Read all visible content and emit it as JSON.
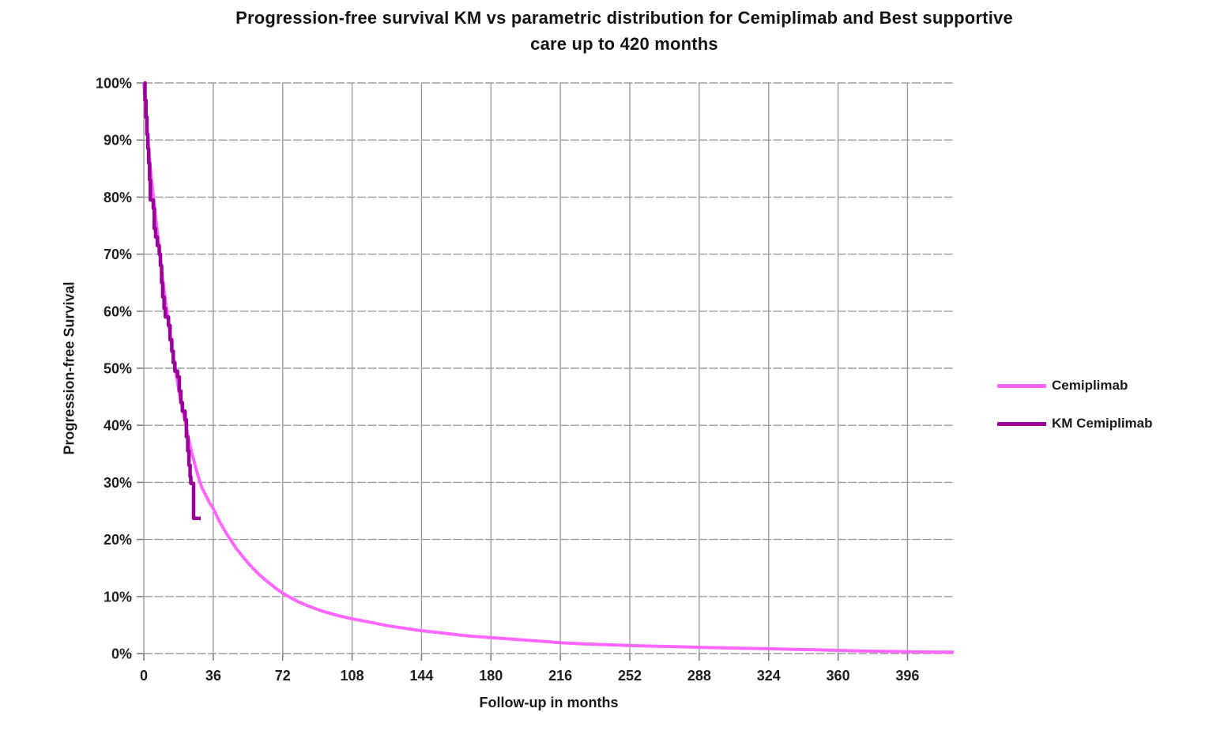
{
  "chart_data": {
    "type": "line",
    "title": "Progression-free survival KM vs parametric distribution for Cemiplimab and Best supportive care up to 420 months",
    "title_lines": [
      "Progression-free survival KM vs parametric distribution for Cemiplimab and Best supportive",
      "care up to 420 months"
    ],
    "xlabel": "Follow-up in months",
    "ylabel": "Progression-free Survival",
    "x_ticks": [
      0,
      36,
      72,
      108,
      144,
      180,
      216,
      252,
      288,
      324,
      360,
      396
    ],
    "x_max": 420,
    "y_ticks": [
      0,
      10,
      20,
      30,
      40,
      50,
      60,
      70,
      80,
      90,
      100
    ],
    "y_tick_suffix": "%",
    "ylim": [
      0,
      100
    ],
    "grid": true,
    "grid_color": "#9D9D9D",
    "tick_color": "#7F7F7F",
    "legend_position": "right",
    "series": [
      {
        "name": "Cemiplimab",
        "color": "#FF66FF",
        "style": "smooth",
        "width": 4,
        "points": [
          [
            0,
            100
          ],
          [
            1,
            95.5
          ],
          [
            2,
            91
          ],
          [
            3,
            86.5
          ],
          [
            4,
            83
          ],
          [
            5,
            80
          ],
          [
            6,
            77
          ],
          [
            7,
            74
          ],
          [
            8,
            71
          ],
          [
            9,
            68
          ],
          [
            10,
            65
          ],
          [
            11,
            62.5
          ],
          [
            12,
            60
          ],
          [
            13,
            57.5
          ],
          [
            14,
            55
          ],
          [
            15,
            52.5
          ],
          [
            16,
            50.5
          ],
          [
            17,
            48.5
          ],
          [
            18,
            46.5
          ],
          [
            19,
            44.5
          ],
          [
            20,
            43
          ],
          [
            21,
            41.3
          ],
          [
            22,
            39.7
          ],
          [
            23,
            38
          ],
          [
            24,
            36.5
          ],
          [
            25,
            35
          ],
          [
            26,
            33.8
          ],
          [
            27,
            32.5
          ],
          [
            28,
            31.3
          ],
          [
            29,
            30.2
          ],
          [
            30,
            29.2
          ],
          [
            32,
            27.8
          ],
          [
            34,
            26.5
          ],
          [
            36,
            25.4
          ],
          [
            39,
            23.3
          ],
          [
            42,
            21.5
          ],
          [
            45,
            19.9
          ],
          [
            48,
            18.4
          ],
          [
            51,
            17.1
          ],
          [
            54,
            15.9
          ],
          [
            57,
            14.8
          ],
          [
            60,
            13.8
          ],
          [
            63,
            12.9
          ],
          [
            66,
            12.1
          ],
          [
            69,
            11.3
          ],
          [
            72,
            10.6
          ],
          [
            76,
            9.8
          ],
          [
            80,
            9.1
          ],
          [
            84,
            8.5
          ],
          [
            88,
            8.0
          ],
          [
            92,
            7.5
          ],
          [
            96,
            7.1
          ],
          [
            100,
            6.7
          ],
          [
            104,
            6.4
          ],
          [
            108,
            6.1
          ],
          [
            114,
            5.7
          ],
          [
            120,
            5.3
          ],
          [
            126,
            4.9
          ],
          [
            132,
            4.6
          ],
          [
            138,
            4.3
          ],
          [
            144,
            4.0
          ],
          [
            152,
            3.7
          ],
          [
            160,
            3.4
          ],
          [
            168,
            3.1
          ],
          [
            176,
            2.9
          ],
          [
            184,
            2.7
          ],
          [
            192,
            2.5
          ],
          [
            200,
            2.3
          ],
          [
            208,
            2.1
          ],
          [
            216,
            1.9
          ],
          [
            228,
            1.7
          ],
          [
            240,
            1.55
          ],
          [
            252,
            1.4
          ],
          [
            264,
            1.3
          ],
          [
            276,
            1.2
          ],
          [
            288,
            1.1
          ],
          [
            300,
            1.0
          ],
          [
            312,
            0.92
          ],
          [
            324,
            0.85
          ],
          [
            336,
            0.75
          ],
          [
            348,
            0.65
          ],
          [
            360,
            0.55
          ],
          [
            372,
            0.45
          ],
          [
            384,
            0.38
          ],
          [
            396,
            0.32
          ],
          [
            408,
            0.27
          ],
          [
            420,
            0.23
          ]
        ]
      },
      {
        "name": "KM Cemiplimab",
        "color": "#990099",
        "style": "step-after",
        "width": 4.5,
        "points": [
          [
            0,
            100
          ],
          [
            0.6,
            97
          ],
          [
            1.1,
            94
          ],
          [
            1.6,
            91
          ],
          [
            2.1,
            88.5
          ],
          [
            2.5,
            86
          ],
          [
            3.0,
            83
          ],
          [
            3.4,
            79.5
          ],
          [
            4.9,
            78
          ],
          [
            5.4,
            74.5
          ],
          [
            6.1,
            73
          ],
          [
            7.0,
            71.5
          ],
          [
            8.0,
            70
          ],
          [
            8.6,
            68
          ],
          [
            9.2,
            65
          ],
          [
            9.8,
            62.5
          ],
          [
            10.5,
            60.5
          ],
          [
            11.2,
            59
          ],
          [
            12.8,
            57.5
          ],
          [
            13.6,
            55
          ],
          [
            14.5,
            53
          ],
          [
            15.3,
            51
          ],
          [
            16.1,
            49.5
          ],
          [
            17.5,
            48.5
          ],
          [
            18.4,
            46
          ],
          [
            19.2,
            44
          ],
          [
            20.0,
            42.5
          ],
          [
            21.4,
            41
          ],
          [
            22.1,
            38
          ],
          [
            22.8,
            35.5
          ],
          [
            23.4,
            33
          ],
          [
            24.0,
            31
          ],
          [
            24.4,
            29.8
          ],
          [
            25.7,
            29.8
          ],
          [
            25.8,
            23.7
          ],
          [
            29.5,
            23.7
          ]
        ]
      }
    ]
  }
}
